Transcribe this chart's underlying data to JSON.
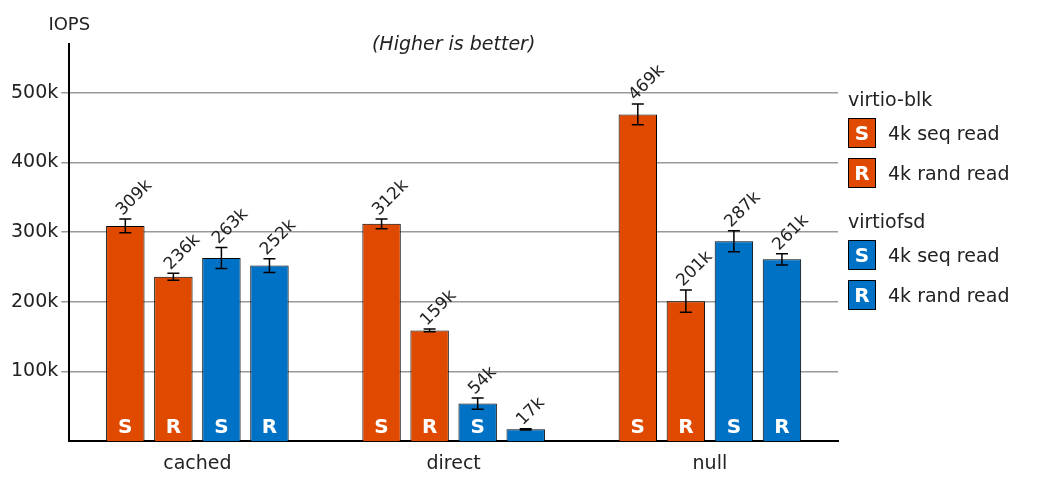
{
  "chart_data": {
    "type": "bar",
    "title": "(Higher is better)",
    "ylabel": "IOPS",
    "categories": [
      "cached",
      "direct",
      "null"
    ],
    "series": [
      {
        "name": "4k seq read",
        "color": "#e04a00",
        "values": [
          309000,
          312000,
          469000
        ],
        "errors": [
          10000,
          7000,
          15000
        ],
        "value_labels": [
          "309k",
          "312k",
          "469k"
        ]
      },
      {
        "name": "4k rand read",
        "color": "#e04a00",
        "values": [
          236000,
          159000,
          201000
        ],
        "errors": [
          5000,
          2000,
          16000
        ],
        "value_labels": [
          "236k",
          "159k",
          "201k"
        ]
      },
      {
        "name": "4k seq read",
        "color": "#0072c6",
        "values": [
          263000,
          54000,
          287000
        ],
        "errors": [
          15000,
          8000,
          15000
        ],
        "value_labels": [
          "263k",
          "54k",
          "287k"
        ]
      },
      {
        "name": "4k rand read",
        "color": "#0072c6",
        "values": [
          252000,
          17000,
          261000
        ],
        "errors": [
          10000,
          1000,
          8000
        ],
        "value_labels": [
          "252k",
          "17k",
          "261k"
        ]
      }
    ],
    "legend_title": [
      "virtio-blk",
      "virtiofsd"
    ],
    "annotations": [
      "S",
      "R"
    ],
    "ylim": [
      0,
      570000
    ],
    "yticks": [
      {
        "value": 100000,
        "label": "100k"
      },
      {
        "value": 200000,
        "label": "200k"
      },
      {
        "value": 300000,
        "label": "300k"
      },
      {
        "value": 400000,
        "label": "400k"
      },
      {
        "value": 500000,
        "label": "500k"
      }
    ],
    "grid": "y",
    "legend": "right"
  }
}
